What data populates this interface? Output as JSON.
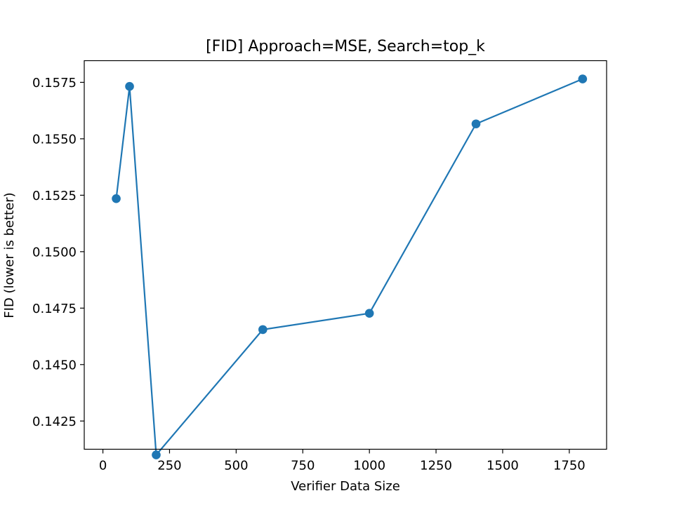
{
  "chart_data": {
    "type": "line",
    "title": "[FID] Approach=MSE, Search=top_k",
    "xlabel": "Verifier Data Size",
    "ylabel": "FID (lower is better)",
    "xlim": [
      -70,
      1890
    ],
    "ylim": [
      0.14125,
      0.15846
    ],
    "xticks": [
      0,
      250,
      500,
      750,
      1000,
      1250,
      1500,
      1750
    ],
    "xtick_labels": [
      "0",
      "250",
      "500",
      "750",
      "1000",
      "1250",
      "1500",
      "1750"
    ],
    "yticks": [
      0.1425,
      0.145,
      0.1475,
      0.15,
      0.1525,
      0.155,
      0.1575
    ],
    "ytick_labels": [
      "0.1425",
      "0.1450",
      "0.1475",
      "0.1500",
      "0.1525",
      "0.1550",
      "0.1575"
    ],
    "grid": false,
    "series": [
      {
        "color": "#1f77b4",
        "marker": "circle",
        "x": [
          50,
          100,
          200,
          600,
          1000,
          1400,
          1800
        ],
        "y": [
          0.15235,
          0.15732,
          0.141,
          0.14655,
          0.14727,
          0.15566,
          0.15765
        ]
      }
    ]
  }
}
